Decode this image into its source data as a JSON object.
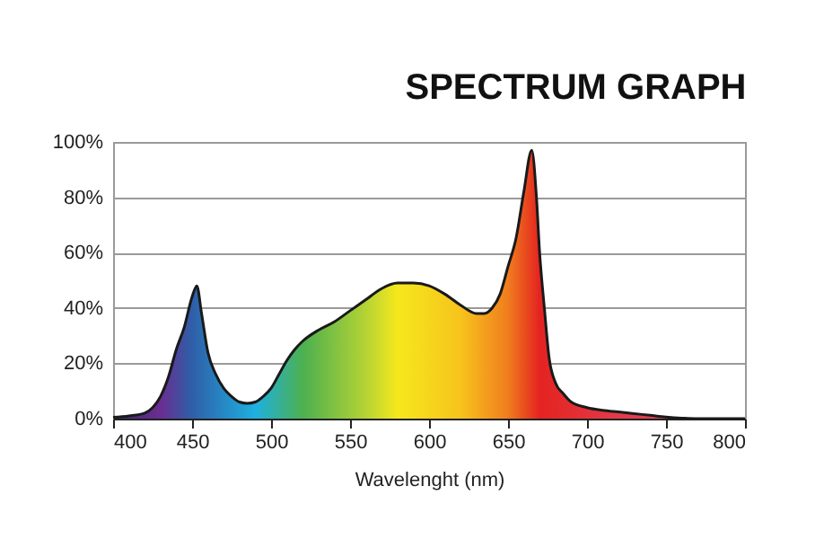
{
  "chart_data": {
    "type": "area",
    "title": "SPECTRUM GRAPH",
    "xlabel": "Wavelenght (nm)",
    "x": [
      400,
      410,
      420,
      425,
      430,
      435,
      440,
      445,
      450,
      453,
      456,
      460,
      465,
      470,
      475,
      480,
      485,
      490,
      495,
      500,
      505,
      510,
      515,
      520,
      530,
      540,
      550,
      560,
      570,
      580,
      590,
      600,
      610,
      620,
      630,
      635,
      640,
      645,
      650,
      655,
      660,
      665,
      668,
      670,
      673,
      676,
      680,
      685,
      690,
      700,
      710,
      720,
      730,
      740,
      750,
      760,
      770,
      800
    ],
    "series": [
      {
        "color": "#1a1a1a",
        "values": [
          0.5,
          1,
          2,
          4,
          8,
          15,
          25,
          33,
          44,
          48,
          38,
          24,
          16,
          11,
          8,
          6,
          5.5,
          6,
          8,
          11,
          16,
          21,
          25,
          28,
          32,
          35,
          39,
          43,
          47,
          49,
          49,
          48,
          45,
          41,
          38,
          38,
          40,
          45,
          55,
          65,
          82,
          97,
          80,
          60,
          40,
          22,
          13,
          9,
          6,
          4,
          3,
          2.4,
          1.8,
          1.2,
          0.6,
          0.2,
          0,
          0
        ]
      }
    ],
    "xlim": [
      400,
      800
    ],
    "xticks": [
      400,
      450,
      500,
      550,
      600,
      650,
      700,
      750,
      800
    ],
    "ylim": [
      0,
      100
    ],
    "yticks": [
      {
        "value": 0,
        "label": "0%"
      },
      {
        "value": 20,
        "label": "20%"
      },
      {
        "value": 40,
        "label": "40%"
      },
      {
        "value": 60,
        "label": "60%"
      },
      {
        "value": 80,
        "label": "80%"
      },
      {
        "value": 100,
        "label": "100%"
      }
    ],
    "grid": "y"
  }
}
